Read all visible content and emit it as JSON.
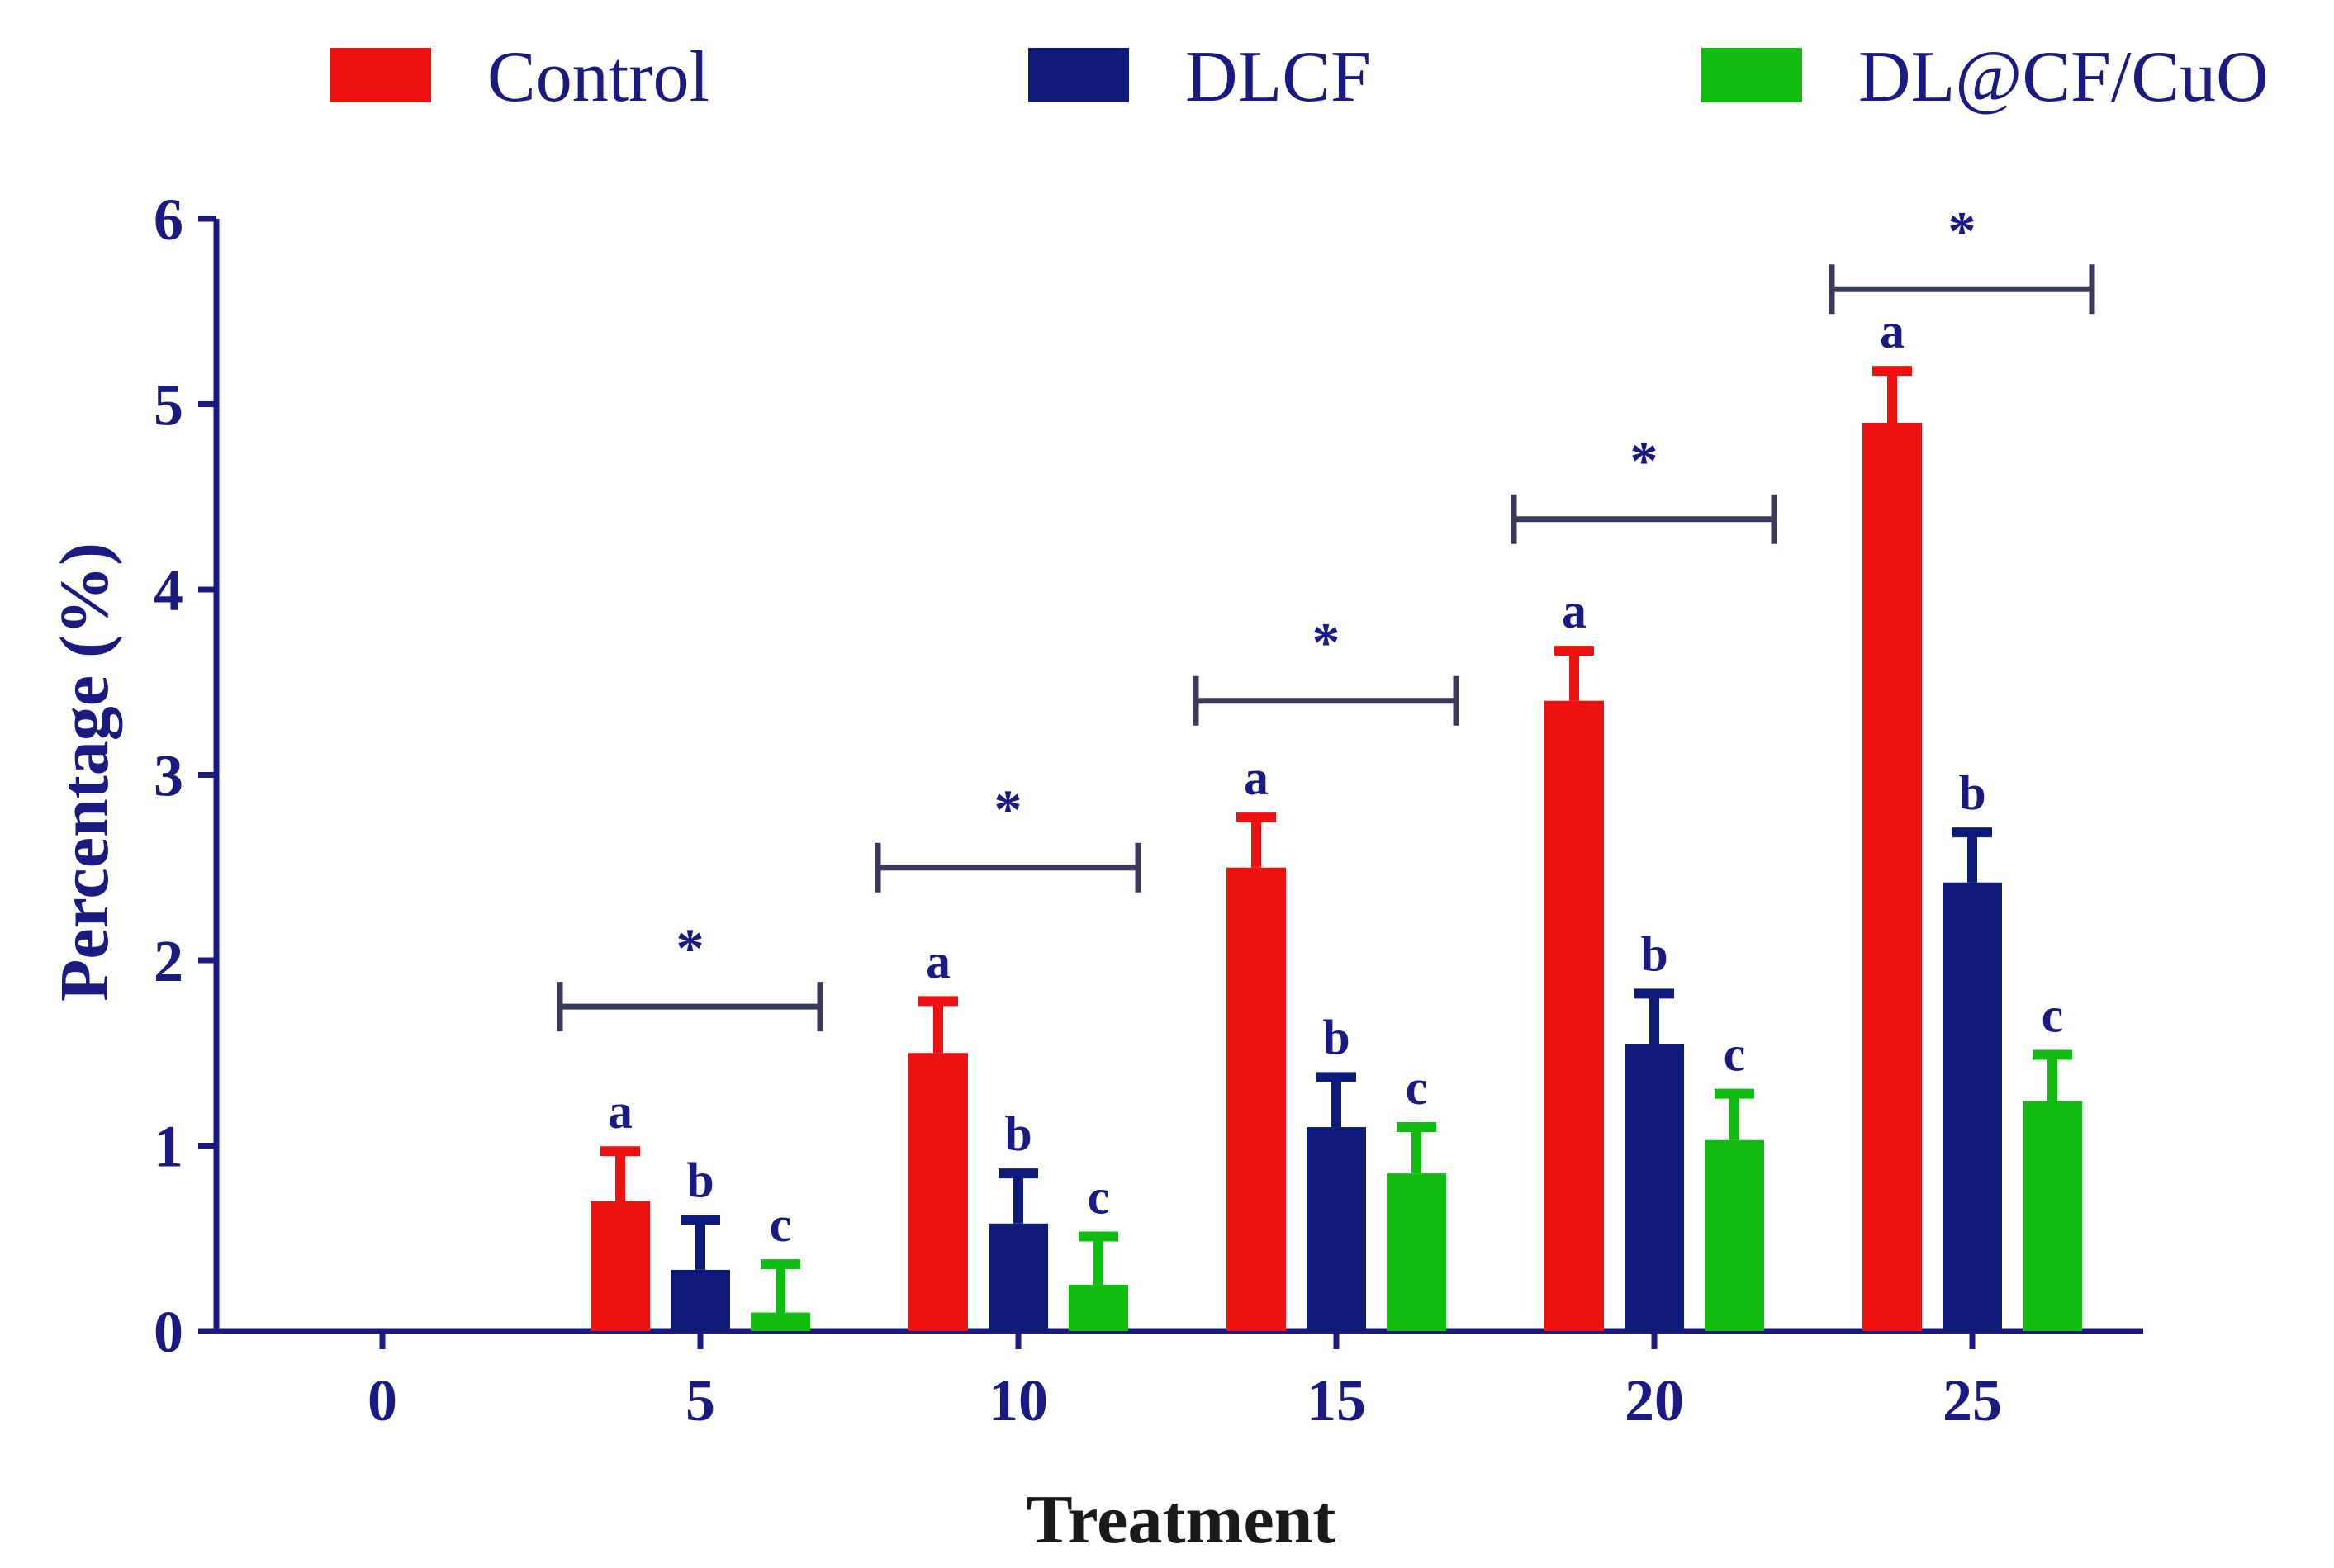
{
  "chart_data": {
    "type": "bar",
    "title": "",
    "xlabel": "Treatment",
    "ylabel": "Percentage (%)",
    "ylim": [
      0,
      6
    ],
    "yticks": [
      "0",
      "1",
      "2",
      "3",
      "4",
      "5",
      "6"
    ],
    "categories": [
      "0",
      "5",
      "10",
      "15",
      "20",
      "25"
    ],
    "series": [
      {
        "name": "Control",
        "color": "#ee1111",
        "values": [
          0,
          0.7,
          1.5,
          2.5,
          3.4,
          4.9
        ],
        "errors": [
          0,
          0.27,
          0.28,
          0.27,
          0.27,
          0.28
        ],
        "letters": [
          "",
          "a",
          "a",
          "a",
          "a",
          "a"
        ]
      },
      {
        "name": "DLCF",
        "color": "#0e1a78",
        "values": [
          0,
          0.33,
          0.58,
          1.1,
          1.55,
          2.42
        ],
        "errors": [
          0,
          0.27,
          0.27,
          0.27,
          0.27,
          0.27
        ],
        "letters": [
          "",
          "b",
          "b",
          "b",
          "b",
          "b"
        ]
      },
      {
        "name": "DL@CF/CuO",
        "color": "#11bb11",
        "values": [
          0,
          0.1,
          0.25,
          0.85,
          1.03,
          1.24
        ],
        "errors": [
          0,
          0.26,
          0.26,
          0.25,
          0.25,
          0.25
        ],
        "letters": [
          "",
          "c",
          "c",
          "c",
          "c",
          "c"
        ]
      }
    ],
    "significance": [
      {
        "category": "5",
        "y": 1.75,
        "label": "*"
      },
      {
        "category": "10",
        "y": 2.5,
        "label": "*"
      },
      {
        "category": "15",
        "y": 3.4,
        "label": "*"
      },
      {
        "category": "20",
        "y": 4.38,
        "label": "*"
      },
      {
        "category": "25",
        "y": 5.62,
        "label": "*"
      }
    ],
    "legend_position": "top"
  },
  "colors": {
    "axis": "#1a1a80",
    "bracket": "#3a3a5a"
  }
}
